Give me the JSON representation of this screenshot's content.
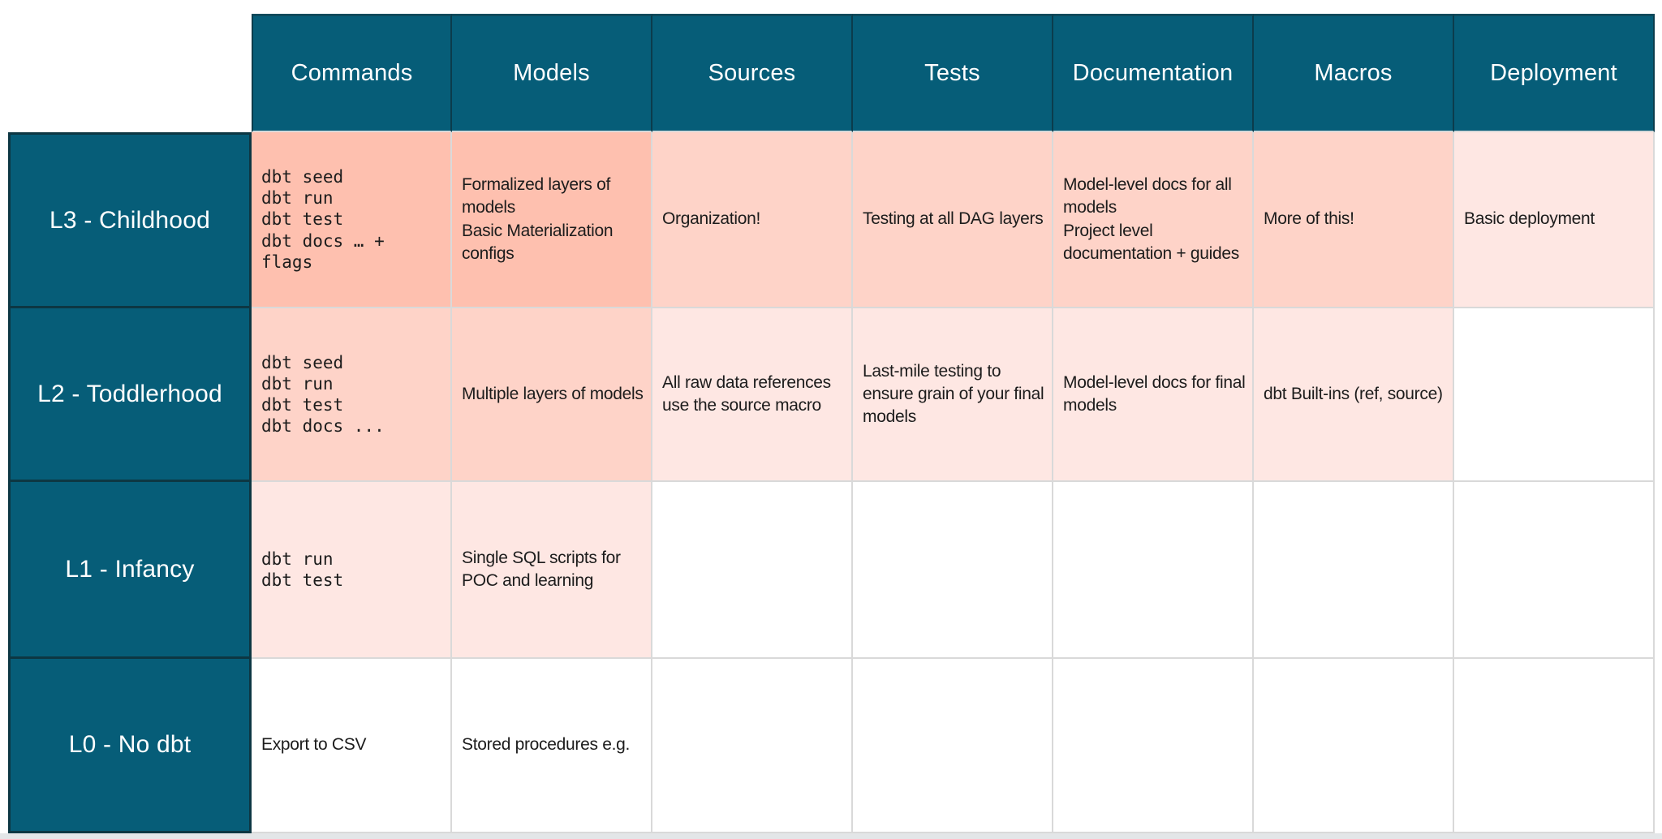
{
  "palette": {
    "header_bg": "#065d78",
    "header_text": "#ffffff",
    "dark_border": "#0d3743",
    "grid_line": "#d9d9d9",
    "cell_text": "#1c1c1c",
    "shade_strong": "#fec0af",
    "shade_medium": "#fed3c8",
    "shade_light": "#fee7e3",
    "shade_none": "#ffffff",
    "footer_strip": "#e3e6e8"
  },
  "columns": [
    "Commands",
    "Models",
    "Sources",
    "Tests",
    "Documentation",
    "Macros",
    "Deployment"
  ],
  "rows": [
    {
      "label": "L3 - Childhood",
      "cells": [
        {
          "text": "dbt seed\ndbt run\ndbt test\ndbt docs … +\nflags",
          "shade": "strong"
        },
        {
          "text": "Formalized layers of models\nBasic Materialization configs",
          "shade": "strong"
        },
        {
          "text": "Organization!",
          "shade": "medium"
        },
        {
          "text": "Testing at all DAG layers",
          "shade": "medium"
        },
        {
          "text": "Model-level docs for all models\nProject level documentation + guides",
          "shade": "medium"
        },
        {
          "text": "More of this!",
          "shade": "medium"
        },
        {
          "text": "Basic deployment",
          "shade": "light"
        }
      ]
    },
    {
      "label": "L2 - Toddlerhood",
      "cells": [
        {
          "text": "dbt seed\ndbt run\ndbt test\ndbt docs ...",
          "shade": "medium"
        },
        {
          "text": "Multiple layers of models",
          "shade": "medium"
        },
        {
          "text": "All raw data references use the source macro",
          "shade": "light"
        },
        {
          "text": "Last-mile testing to ensure grain of your final models",
          "shade": "light"
        },
        {
          "text": "Model-level docs for final models",
          "shade": "light"
        },
        {
          "text": "dbt Built-ins (ref, source)",
          "shade": "light"
        },
        {
          "text": "",
          "shade": "none"
        }
      ]
    },
    {
      "label": "L1 - Infancy",
      "cells": [
        {
          "text": "dbt run\ndbt test",
          "shade": "light"
        },
        {
          "text": "Single SQL scripts for POC and learning",
          "shade": "light"
        },
        {
          "text": "",
          "shade": "none"
        },
        {
          "text": "",
          "shade": "none"
        },
        {
          "text": "",
          "shade": "none"
        },
        {
          "text": "",
          "shade": "none"
        },
        {
          "text": "",
          "shade": "none"
        }
      ]
    },
    {
      "label": "L0 - No dbt",
      "cells": [
        {
          "text": "Export to CSV",
          "shade": "none"
        },
        {
          "text": "Stored procedures e.g.",
          "shade": "none"
        },
        {
          "text": "",
          "shade": "none"
        },
        {
          "text": "",
          "shade": "none"
        },
        {
          "text": "",
          "shade": "none"
        },
        {
          "text": "",
          "shade": "none"
        },
        {
          "text": "",
          "shade": "none"
        }
      ]
    }
  ]
}
